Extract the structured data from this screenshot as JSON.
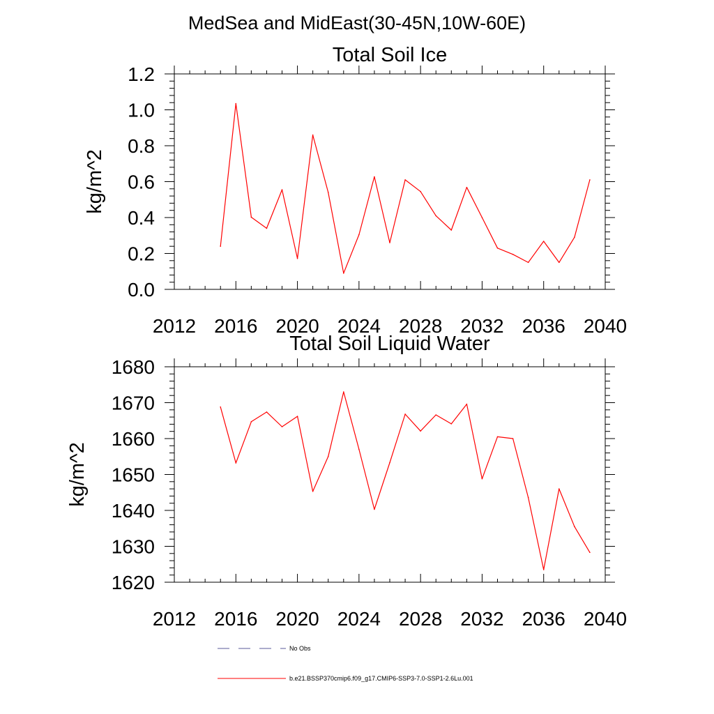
{
  "figure": {
    "title": "MedSea and MidEast(30-45N,10W-60E)"
  },
  "chart_data": [
    {
      "type": "line",
      "title": "Total Soil Ice",
      "xlabel": "",
      "ylabel": "kg/m^2",
      "xlim": [
        2012,
        2040
      ],
      "ylim": [
        0.0,
        1.2
      ],
      "xticks": [
        2012,
        2016,
        2020,
        2024,
        2028,
        2032,
        2036,
        2040
      ],
      "xtick_labels": [
        "2012",
        "2016",
        "2020",
        "2024",
        "2028",
        "2032",
        "2036",
        "2040"
      ],
      "yticks": [
        0.0,
        0.2,
        0.4,
        0.6,
        0.8,
        1.0,
        1.2
      ],
      "ytick_labels": [
        "0.0",
        "0.2",
        "0.4",
        "0.6",
        "0.8",
        "1.0",
        "1.2"
      ],
      "grid": false,
      "x": [
        2015,
        2016,
        2017,
        2018,
        2019,
        2020,
        2021,
        2022,
        2023,
        2024,
        2025,
        2026,
        2027,
        2028,
        2029,
        2030,
        2031,
        2032,
        2033,
        2034,
        2035,
        2036,
        2037,
        2038,
        2039
      ],
      "series": [
        {
          "name": "b.e21.BSSP370cmip6.f09_g17.CMIP6-SSP3-7.0-SSP1-2.6Lu.001",
          "color": "#ff0000",
          "values": [
            0.24,
            1.035,
            0.402,
            0.34,
            0.555,
            0.172,
            0.86,
            0.54,
            0.09,
            0.305,
            0.627,
            0.26,
            0.61,
            0.545,
            0.41,
            0.33,
            0.568,
            0.4,
            0.23,
            0.195,
            0.15,
            0.268,
            0.15,
            0.29,
            0.61
          ]
        }
      ]
    },
    {
      "type": "line",
      "title": "Total Soil Liquid Water",
      "xlabel": "",
      "ylabel": "kg/m^2",
      "xlim": [
        2012,
        2040
      ],
      "ylim": [
        1620,
        1680
      ],
      "xticks": [
        2012,
        2016,
        2020,
        2024,
        2028,
        2032,
        2036,
        2040
      ],
      "xtick_labels": [
        "2012",
        "2016",
        "2020",
        "2024",
        "2028",
        "2032",
        "2036",
        "2040"
      ],
      "yticks": [
        1620,
        1630,
        1640,
        1650,
        1660,
        1670,
        1680
      ],
      "ytick_labels": [
        "1620",
        "1630",
        "1640",
        "1650",
        "1660",
        "1670",
        "1680"
      ],
      "grid": false,
      "x": [
        2015,
        2016,
        2017,
        2018,
        2019,
        2020,
        2021,
        2022,
        2023,
        2024,
        2025,
        2026,
        2027,
        2028,
        2029,
        2030,
        2031,
        2032,
        2033,
        2034,
        2035,
        2036,
        2037,
        2038,
        2039
      ],
      "series": [
        {
          "name": "b.e21.BSSP370cmip6.f09_g17.CMIP6-SSP3-7.0-SSP1-2.6Lu.001",
          "color": "#ff0000",
          "values": [
            1668.8,
            1653.2,
            1664.7,
            1667.4,
            1663.3,
            1666.2,
            1645.3,
            1655.0,
            1673.0,
            1657.0,
            1640.3,
            1653.3,
            1666.8,
            1662.1,
            1666.6,
            1664.1,
            1669.6,
            1648.8,
            1660.5,
            1660.0,
            1643.6,
            1623.5,
            1646.0,
            1635.5,
            1628.3
          ]
        }
      ]
    }
  ],
  "legend": {
    "placement": "bottom",
    "items": [
      {
        "label": "No Obs",
        "color": "#5a5a9a",
        "style": "dashed"
      },
      {
        "label": "b.e21.BSSP370cmip6.f09_g17.CMIP6-SSP3-7.0-SSP1-2.6Lu.001",
        "color": "#ff0000",
        "style": "solid"
      }
    ]
  }
}
